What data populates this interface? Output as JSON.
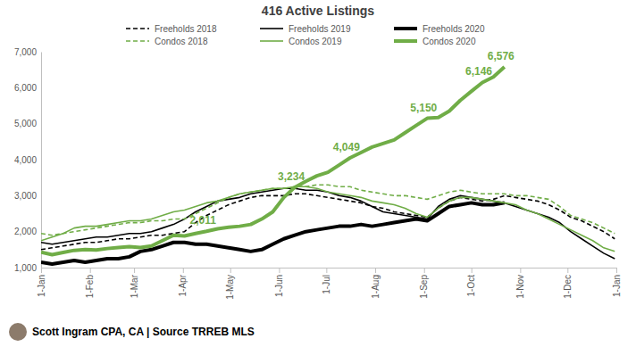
{
  "chart_data": {
    "type": "line",
    "title": "416 Active Listings",
    "footer": "Scott Ingram CPA, CA | Source TRREB MLS",
    "x": [
      0,
      7,
      14,
      21,
      28,
      35,
      42,
      49,
      56,
      63,
      70,
      77,
      84,
      91,
      98,
      105,
      112,
      119,
      126,
      133,
      140,
      147,
      154,
      161,
      168,
      175,
      182,
      189,
      196,
      203,
      210,
      217,
      224,
      231,
      238,
      245,
      252,
      259,
      266,
      273,
      280,
      287,
      294,
      301,
      308,
      315,
      322,
      329,
      336,
      343,
      350,
      357,
      364
    ],
    "xlim": [
      0,
      365
    ],
    "xticks": [
      {
        "value": 0,
        "label": "1-Jan"
      },
      {
        "value": 31,
        "label": "1-Feb"
      },
      {
        "value": 59,
        "label": "1-Mar"
      },
      {
        "value": 90,
        "label": "1-Apr"
      },
      {
        "value": 120,
        "label": "1-May"
      },
      {
        "value": 151,
        "label": "1-Jun"
      },
      {
        "value": 181,
        "label": "1-Jul"
      },
      {
        "value": 212,
        "label": "1-Aug"
      },
      {
        "value": 243,
        "label": "1-Sep"
      },
      {
        "value": 273,
        "label": "1-Oct"
      },
      {
        "value": 304,
        "label": "1-Nov"
      },
      {
        "value": 334,
        "label": "1-Dec"
      },
      {
        "value": 365,
        "label": "1-Jan"
      }
    ],
    "ylim": [
      1000,
      7000
    ],
    "yticks": [
      {
        "value": 1000,
        "label": "1,000"
      },
      {
        "value": 2000,
        "label": "2,000"
      },
      {
        "value": 3000,
        "label": "3,000"
      },
      {
        "value": 4000,
        "label": "4,000"
      },
      {
        "value": 5000,
        "label": "5,000"
      },
      {
        "value": 6000,
        "label": "6,000"
      },
      {
        "value": 7000,
        "label": "7,000"
      }
    ],
    "grid": false,
    "legend": "top",
    "series": [
      {
        "name": "Freeholds 2018",
        "color": "#000000",
        "line_style": "dashed",
        "values": [
          1500,
          1550,
          1600,
          1650,
          1700,
          1700,
          1750,
          1800,
          1800,
          1850,
          1900,
          1900,
          1950,
          2000,
          2250,
          2450,
          2600,
          2750,
          2850,
          2950,
          3000,
          3000,
          3000,
          3050,
          3050,
          3000,
          2950,
          2900,
          2850,
          2800,
          2700,
          2650,
          2550,
          2500,
          2450,
          2400,
          2650,
          2850,
          2950,
          2900,
          2850,
          2900,
          3000,
          2950,
          2900,
          2850,
          2750,
          2600,
          2400,
          2300,
          2150,
          2000,
          1800
        ]
      },
      {
        "name": "Freeholds 2019",
        "color": "#000000",
        "line_style": "solid",
        "values": [
          1700,
          1650,
          1700,
          1750,
          1800,
          1850,
          1850,
          1900,
          1950,
          1950,
          2000,
          2100,
          2200,
          2350,
          2550,
          2700,
          2850,
          2900,
          2950,
          3050,
          3100,
          3150,
          3200,
          3200,
          3150,
          3150,
          3100,
          3000,
          2950,
          2850,
          2700,
          2550,
          2500,
          2450,
          2400,
          2350,
          2700,
          2900,
          3000,
          2950,
          2900,
          2850,
          2800,
          2700,
          2600,
          2500,
          2400,
          2250,
          2000,
          1800,
          1600,
          1400,
          1250
        ]
      },
      {
        "name": "Freeholds 2020",
        "color": "#000000",
        "line_style": "bold",
        "values": [
          1150,
          1100,
          1150,
          1200,
          1150,
          1200,
          1250,
          1250,
          1300,
          1450,
          1500,
          1600,
          1700,
          1700,
          1650,
          1650,
          1600,
          1550,
          1500,
          1450,
          1500,
          1650,
          1800,
          1900,
          2000,
          2050,
          2100,
          2150,
          2150,
          2200,
          2150,
          2200,
          2250,
          2300,
          2350,
          2300,
          2500,
          2700,
          2750,
          2800,
          2750,
          2750,
          2800,
          null,
          null,
          null,
          null,
          null,
          null,
          null,
          null,
          null,
          null
        ]
      },
      {
        "name": "Condos 2018",
        "color": "#70ad47",
        "line_style": "dashed",
        "values": [
          1950,
          1900,
          1950,
          2000,
          2050,
          2100,
          2150,
          2200,
          2250,
          2250,
          2300,
          2300,
          2350,
          2350,
          2500,
          2650,
          2800,
          2950,
          3050,
          3100,
          3150,
          3200,
          3200,
          3250,
          3250,
          3300,
          3300,
          3250,
          3250,
          3150,
          3100,
          3050,
          3000,
          3000,
          2950,
          2900,
          3000,
          3100,
          3150,
          3100,
          3050,
          3050,
          3050,
          3000,
          3000,
          2950,
          2900,
          2700,
          2450,
          2350,
          2250,
          2100,
          1950
        ]
      },
      {
        "name": "Condos 2019",
        "color": "#70ad47",
        "line_style": "solid",
        "values": [
          1750,
          1850,
          1950,
          2100,
          2150,
          2150,
          2200,
          2250,
          2300,
          2300,
          2350,
          2450,
          2550,
          2600,
          2700,
          2800,
          2850,
          2950,
          3050,
          3100,
          3150,
          3200,
          3200,
          3250,
          3250,
          3200,
          3100,
          3050,
          3000,
          2950,
          2850,
          2800,
          2750,
          2650,
          2500,
          2400,
          2650,
          2850,
          2950,
          2950,
          2900,
          2850,
          2800,
          2750,
          2600,
          2500,
          2350,
          2200,
          2050,
          1900,
          1750,
          1550,
          1450
        ]
      },
      {
        "name": "Condos 2020",
        "color": "#70ad47",
        "line_style": "bold",
        "values": [
          1430,
          1360,
          1420,
          1480,
          1500,
          1490,
          1530,
          1560,
          1580,
          1560,
          1600,
          1750,
          1900,
          1880,
          1950,
          2011,
          2080,
          2120,
          2150,
          2200,
          2350,
          2550,
          2950,
          3234,
          3400,
          3550,
          3650,
          3850,
          4049,
          4200,
          4350,
          4450,
          4550,
          4750,
          4950,
          5150,
          5170,
          5350,
          5650,
          5900,
          6146,
          6300,
          6576,
          null,
          null,
          null,
          null,
          null,
          null,
          null,
          null,
          null,
          null
        ],
        "value_labels": [
          null,
          null,
          null,
          null,
          null,
          null,
          null,
          null,
          null,
          null,
          null,
          null,
          null,
          null,
          null,
          "2,011",
          null,
          null,
          null,
          null,
          null,
          null,
          null,
          "3,234",
          null,
          null,
          null,
          null,
          "4,049",
          null,
          null,
          null,
          null,
          null,
          null,
          "5,150",
          null,
          null,
          null,
          null,
          "6,146",
          null,
          "6,576",
          null,
          null,
          null,
          null,
          null,
          null,
          null,
          null,
          null,
          null
        ]
      }
    ]
  }
}
